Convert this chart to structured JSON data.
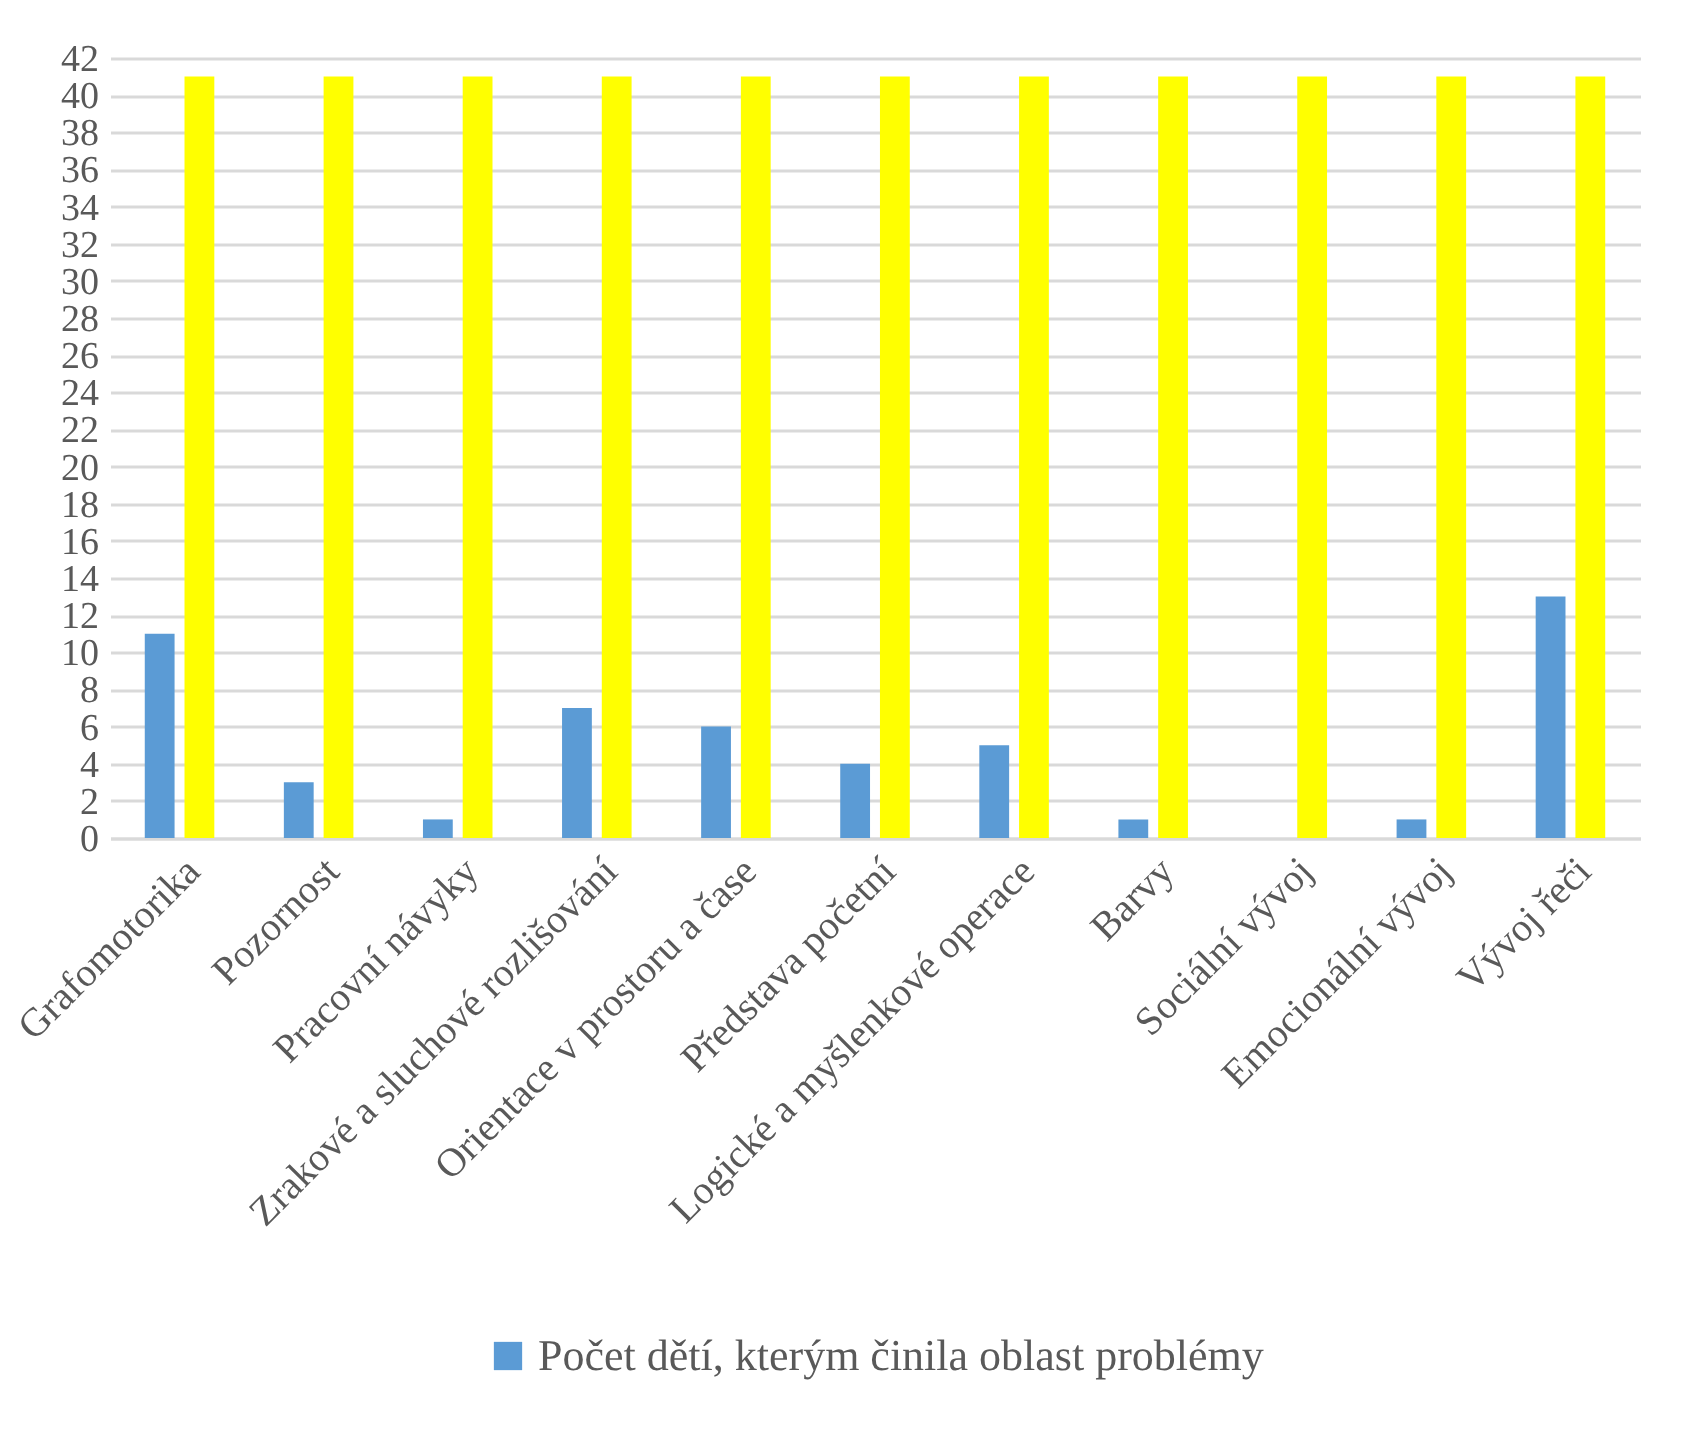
{
  "chart_data": {
    "type": "bar",
    "categories": [
      "Grafomotorika",
      "Pozornost",
      "Pracovní návyky",
      "Zrakové a sluchové rozlišování",
      "Orientace v prostoru a čase",
      "Představa početní",
      "Logické a myšlenkové operace",
      "Barvy",
      "Sociální vývoj",
      "Emocionální vývoj",
      "Vývoj řeči"
    ],
    "series": [
      {
        "name": "Počet dětí, kterým činila oblast problémy",
        "color": "#5b9bd5",
        "values": [
          11,
          3,
          1,
          7,
          6,
          4,
          5,
          1,
          0,
          1,
          13
        ]
      },
      {
        "color": "#ffff00",
        "values": [
          41,
          41,
          41,
          41,
          41,
          41,
          41,
          41,
          41,
          41,
          41
        ]
      }
    ],
    "ylim": [
      0,
      42
    ],
    "yticks": [
      0,
      2,
      4,
      6,
      8,
      10,
      12,
      14,
      16,
      18,
      20,
      22,
      24,
      26,
      28,
      30,
      32,
      34,
      36,
      38,
      40,
      42
    ],
    "grid": "y",
    "legend": "bottom"
  }
}
